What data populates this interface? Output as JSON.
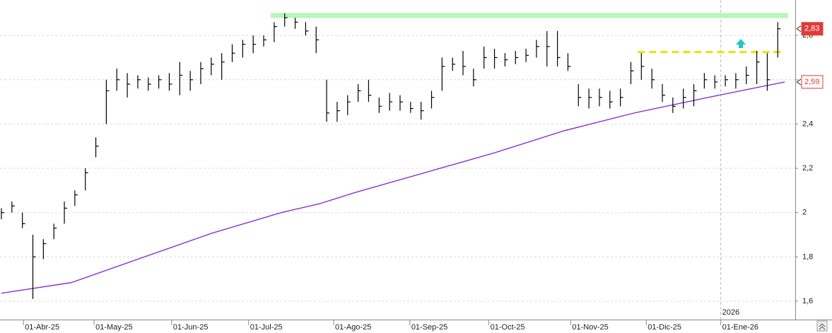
{
  "chart_data": {
    "type": "ohlc",
    "xlim": [
      -0.4,
      227
    ],
    "ylim": [
      1.517,
      2.96
    ],
    "yticks": [
      {
        "value": 1.6,
        "label": "1,6"
      },
      {
        "value": 1.8,
        "label": "1,8"
      },
      2,
      {
        "value": 2.2,
        "label": "2,2"
      },
      {
        "value": 2.4,
        "label": "2,4"
      },
      {
        "value": 2.6,
        "label": "2,6"
      },
      {
        "value": 2.8,
        "label": "2,8"
      }
    ],
    "xticks": [
      {
        "value": 6.3,
        "label": "01-Abr-25"
      },
      {
        "value": 26.5,
        "label": "01-May-25"
      },
      {
        "value": 48.7,
        "label": "01-Jun-25"
      },
      {
        "value": 70.7,
        "label": "01-Jul-25"
      },
      {
        "value": 95,
        "label": "01-Ago-25"
      },
      {
        "value": 116.8,
        "label": "01-Sep-25"
      },
      {
        "value": 139.4,
        "label": "01-Oct-25"
      },
      {
        "value": 162.8,
        "label": "01-Nov-25"
      },
      {
        "value": 184.4,
        "label": "01-Dic-25"
      },
      {
        "value": 205.7,
        "label": "01-Ene-26"
      }
    ],
    "year_marker": {
      "value": 205.7,
      "label": "2026"
    },
    "grid": true,
    "bars": {
      "color": "#000000",
      "x": [
        0,
        3,
        6,
        9,
        12,
        15,
        18,
        21,
        24,
        27,
        30,
        33,
        36,
        39,
        42,
        45,
        48,
        51,
        54,
        57,
        60,
        63,
        66,
        69,
        72,
        75,
        78,
        81,
        84,
        87,
        90,
        93,
        96,
        99,
        102,
        105,
        108,
        111,
        114,
        117,
        120,
        123,
        126,
        129,
        132,
        135,
        138,
        141,
        144,
        147,
        150,
        153,
        156,
        159,
        162,
        165,
        168,
        171,
        174,
        177,
        180,
        183,
        186,
        189,
        192,
        195,
        198,
        201,
        204,
        207,
        210,
        213,
        216,
        219,
        222
      ],
      "high": [
        2.02,
        2.05,
        2.0,
        1.9,
        1.88,
        1.95,
        2.05,
        2.1,
        2.2,
        2.34,
        2.6,
        2.65,
        2.63,
        2.62,
        2.61,
        2.62,
        2.63,
        2.68,
        2.64,
        2.68,
        2.7,
        2.72,
        2.76,
        2.78,
        2.8,
        2.8,
        2.86,
        2.9,
        2.88,
        2.86,
        2.84,
        2.6,
        2.5,
        2.53,
        2.58,
        2.6,
        2.52,
        2.54,
        2.53,
        2.5,
        2.5,
        2.55,
        2.7,
        2.7,
        2.73,
        2.65,
        2.75,
        2.74,
        2.72,
        2.73,
        2.74,
        2.78,
        2.82,
        2.82,
        2.72,
        2.58,
        2.56,
        2.56,
        2.55,
        2.56,
        2.68,
        2.72,
        2.65,
        2.58,
        2.52,
        2.56,
        2.58,
        2.63,
        2.62,
        2.62,
        2.63,
        2.66,
        2.73,
        2.72,
        2.86
      ],
      "low": [
        1.97,
        2.0,
        1.93,
        1.61,
        1.79,
        1.88,
        1.95,
        2.03,
        2.1,
        2.25,
        2.4,
        2.55,
        2.52,
        2.56,
        2.55,
        2.56,
        2.55,
        2.53,
        2.55,
        2.58,
        2.62,
        2.6,
        2.68,
        2.7,
        2.72,
        2.75,
        2.77,
        2.84,
        2.83,
        2.8,
        2.72,
        2.41,
        2.41,
        2.44,
        2.5,
        2.5,
        2.45,
        2.46,
        2.46,
        2.45,
        2.42,
        2.47,
        2.55,
        2.64,
        2.62,
        2.57,
        2.65,
        2.65,
        2.66,
        2.67,
        2.68,
        2.7,
        2.66,
        2.66,
        2.64,
        2.48,
        2.47,
        2.48,
        2.47,
        2.48,
        2.58,
        2.6,
        2.56,
        2.5,
        2.45,
        2.47,
        2.48,
        2.56,
        2.56,
        2.57,
        2.56,
        2.58,
        2.58,
        2.55,
        2.7
      ],
      "close": [
        2.0,
        2.03,
        1.95,
        1.8,
        1.86,
        1.93,
        2.02,
        2.08,
        2.18,
        2.3,
        2.55,
        2.6,
        2.58,
        2.6,
        2.58,
        2.6,
        2.58,
        2.62,
        2.6,
        2.65,
        2.67,
        2.68,
        2.72,
        2.76,
        2.76,
        2.78,
        2.84,
        2.88,
        2.86,
        2.82,
        2.78,
        2.45,
        2.46,
        2.5,
        2.55,
        2.53,
        2.48,
        2.5,
        2.5,
        2.47,
        2.46,
        2.52,
        2.66,
        2.67,
        2.66,
        2.6,
        2.7,
        2.7,
        2.69,
        2.7,
        2.71,
        2.75,
        2.75,
        2.7,
        2.66,
        2.52,
        2.52,
        2.52,
        2.5,
        2.52,
        2.64,
        2.66,
        2.6,
        2.53,
        2.48,
        2.52,
        2.55,
        2.6,
        2.59,
        2.6,
        2.6,
        2.62,
        2.68,
        2.6,
        2.83
      ]
    },
    "moving_average": {
      "color": "#8a1fd0",
      "x": [
        0,
        20,
        40,
        60,
        80,
        91,
        101,
        121,
        141,
        161,
        181,
        202,
        224
      ],
      "values": [
        1.636,
        1.684,
        1.795,
        1.906,
        2.0,
        2.04,
        2.09,
        2.18,
        2.27,
        2.37,
        2.45,
        2.52,
        2.59
      ]
    },
    "levels": [
      {
        "value": 2.89,
        "x": [
          77,
          225
        ],
        "color": "#b8f5b8",
        "style": "solid"
      },
      {
        "value": 2.725,
        "x": [
          182,
          224
        ],
        "color": "#f0e000",
        "style": "dashed"
      }
    ],
    "price_tags": [
      {
        "value": 2.83,
        "label": "2,83",
        "color": "#e03a3a"
      },
      {
        "value": 2.59,
        "label": "2,59",
        "color": "#e03a3a"
      }
    ]
  }
}
